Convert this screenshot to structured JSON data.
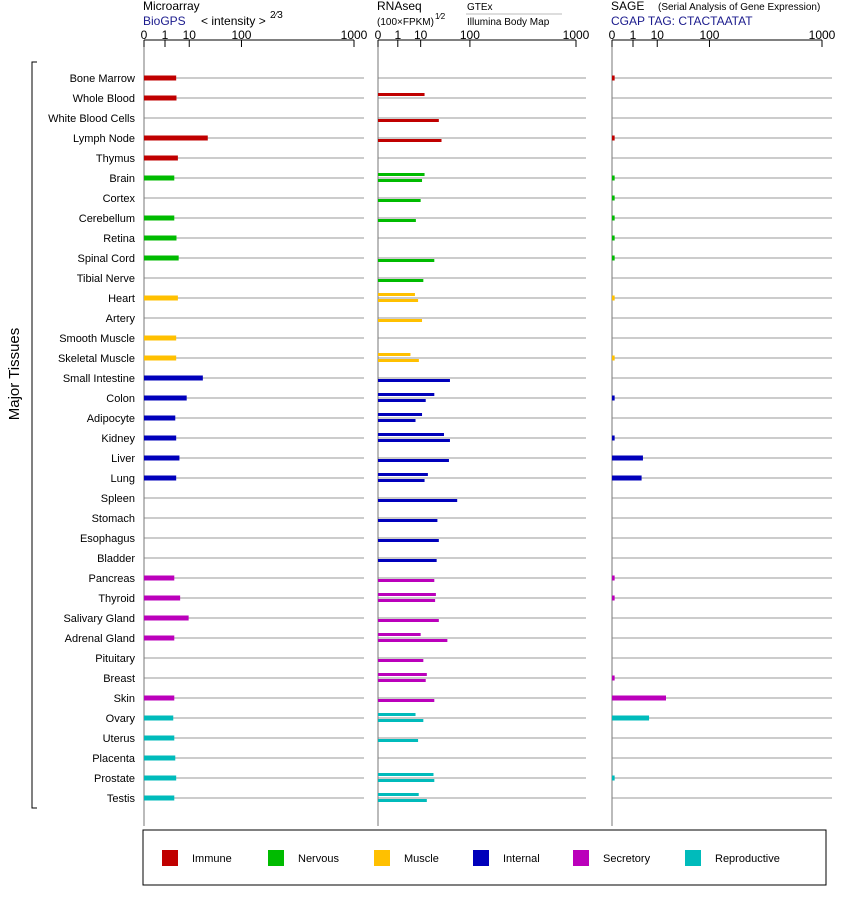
{
  "axis_label": "Major Tissues",
  "panels": {
    "microarray": {
      "title": "Microarray",
      "source": "BioGPS",
      "scale": "< intensity >",
      "scale_exp": "2⁄3"
    },
    "rnaseq": {
      "title": "RNAseq",
      "scale": "(100×FPKM)",
      "scale_exp": "1⁄2",
      "source1": "GTEx",
      "source2": "Illumina Body Map"
    },
    "sage": {
      "title": "SAGE",
      "subtitle": "(Serial Analysis of Gene Expression)",
      "tag": "CGAP TAG: CTACTAATAT"
    }
  },
  "legend": [
    {
      "name": "Immune",
      "color": "#c00000"
    },
    {
      "name": "Nervous",
      "color": "#00bb00"
    },
    {
      "name": "Muscle",
      "color": "#ffc000"
    },
    {
      "name": "Internal",
      "color": "#0000bb"
    },
    {
      "name": "Secretory",
      "color": "#bb00bb"
    },
    {
      "name": "Reproductive",
      "color": "#00bbbb"
    }
  ],
  "chart_data": {
    "type": "bar",
    "scale": "power",
    "ticks": [
      "0",
      "1",
      "10",
      "100",
      "1000"
    ],
    "xlim": [
      0,
      1000
    ],
    "categories": [
      "Bone Marrow",
      "Whole Blood",
      "White Blood Cells",
      "Lymph Node",
      "Thymus",
      "Brain",
      "Cortex",
      "Cerebellum",
      "Retina",
      "Spinal Cord",
      "Tibial Nerve",
      "Heart",
      "Artery",
      "Smooth Muscle",
      "Skeletal Muscle",
      "Small Intestine",
      "Colon",
      "Adipocyte",
      "Kidney",
      "Liver",
      "Lung",
      "Spleen",
      "Stomach",
      "Esophagus",
      "Bladder",
      "Pancreas",
      "Thyroid",
      "Salivary Gland",
      "Adrenal Gland",
      "Pituitary",
      "Breast",
      "Skin",
      "Ovary",
      "Uterus",
      "Placenta",
      "Prostate",
      "Testis"
    ],
    "groups": [
      "Immune",
      "Immune",
      "Immune",
      "Immune",
      "Immune",
      "Nervous",
      "Nervous",
      "Nervous",
      "Nervous",
      "Nervous",
      "Nervous",
      "Muscle",
      "Muscle",
      "Muscle",
      "Muscle",
      "Internal",
      "Internal",
      "Internal",
      "Internal",
      "Internal",
      "Internal",
      "Internal",
      "Internal",
      "Internal",
      "Internal",
      "Secretory",
      "Secretory",
      "Secretory",
      "Secretory",
      "Secretory",
      "Secretory",
      "Secretory",
      "Reproductive",
      "Reproductive",
      "Reproductive",
      "Reproductive",
      "Reproductive"
    ],
    "series": [
      {
        "name": "Microarray",
        "values": [
          3.6,
          3.7,
          null,
          28,
          4.2,
          3.0,
          null,
          3.0,
          3.7,
          4.5,
          null,
          4.2,
          null,
          3.6,
          3.6,
          22,
          8.4,
          3.3,
          3.6,
          4.8,
          3.6,
          null,
          null,
          null,
          null,
          3.0,
          5.1,
          9.6,
          3.0,
          null,
          null,
          3.0,
          2.7,
          3.0,
          3.3,
          3.6,
          3.0
        ]
      },
      {
        "name": "GTEx",
        "values": [
          null,
          13,
          null,
          null,
          null,
          13,
          null,
          null,
          null,
          null,
          null,
          6.5,
          null,
          null,
          4.4,
          null,
          23,
          11,
          37,
          null,
          16,
          null,
          null,
          null,
          null,
          null,
          25,
          null,
          10,
          null,
          15,
          null,
          6.8,
          null,
          null,
          22,
          8.7
        ]
      },
      {
        "name": "Illumina Body Map",
        "values": [
          null,
          null,
          29,
          33,
          null,
          11,
          10,
          7,
          null,
          23,
          12,
          8.3,
          11,
          null,
          8.8,
          48,
          14,
          6.8,
          48,
          46,
          13,
          64,
          27,
          29,
          26,
          23,
          24,
          29,
          43,
          12,
          14,
          23,
          12,
          8.3,
          null,
          23,
          15
        ]
      },
      {
        "name": "SAGE",
        "values": [
          0.002,
          null,
          null,
          0.002,
          null,
          0.002,
          0.002,
          0.002,
          0.002,
          0.002,
          null,
          0.002,
          null,
          null,
          0.002,
          null,
          0.002,
          null,
          0.002,
          3.2,
          2.8,
          null,
          null,
          null,
          null,
          0.002,
          0.002,
          null,
          null,
          null,
          0.002,
          17,
          5.5,
          null,
          null,
          0.002,
          null
        ]
      }
    ]
  }
}
